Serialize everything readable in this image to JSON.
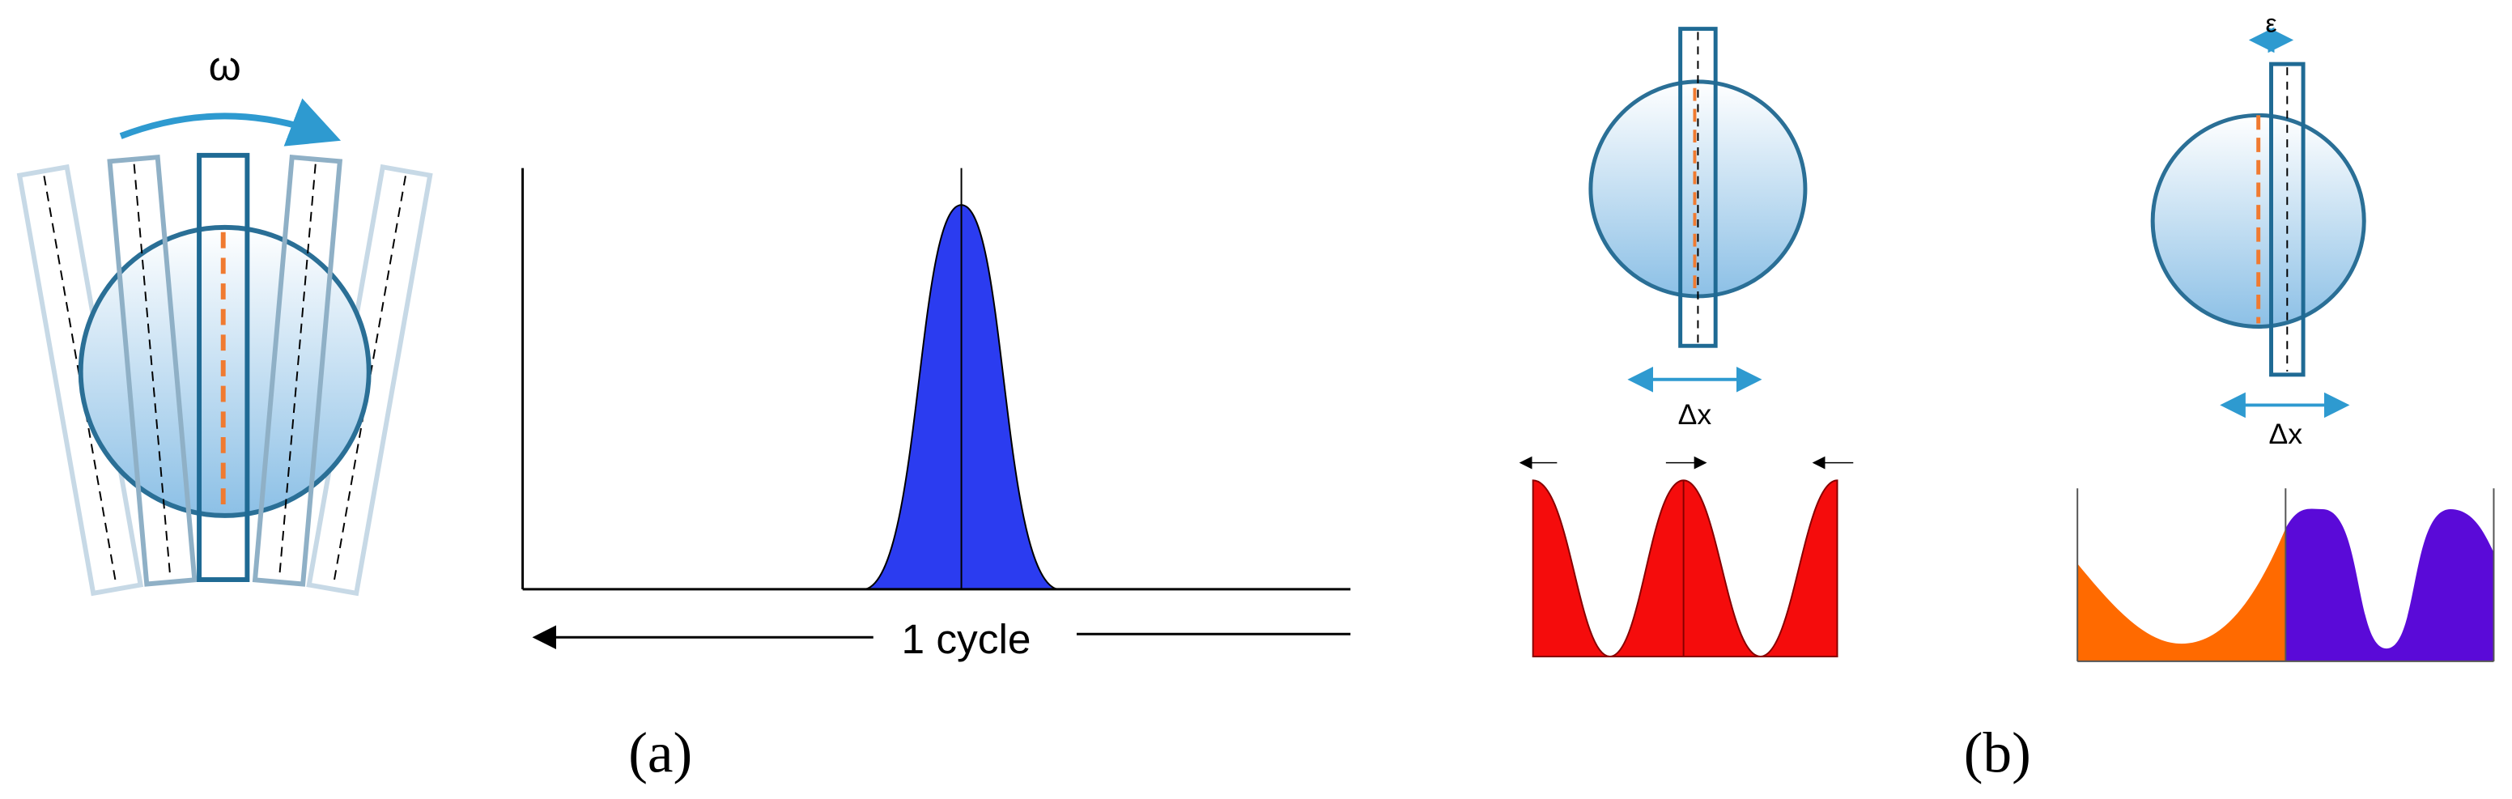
{
  "panel_a": {
    "rotation_label": "ω",
    "cycle_label": "1 cycle",
    "caption": "(a)"
  },
  "panel_b": {
    "left": {
      "shift_label": "Δx"
    },
    "right": {
      "offset_label": "ε",
      "shift_label": "Δx"
    },
    "caption": "(b)"
  }
}
